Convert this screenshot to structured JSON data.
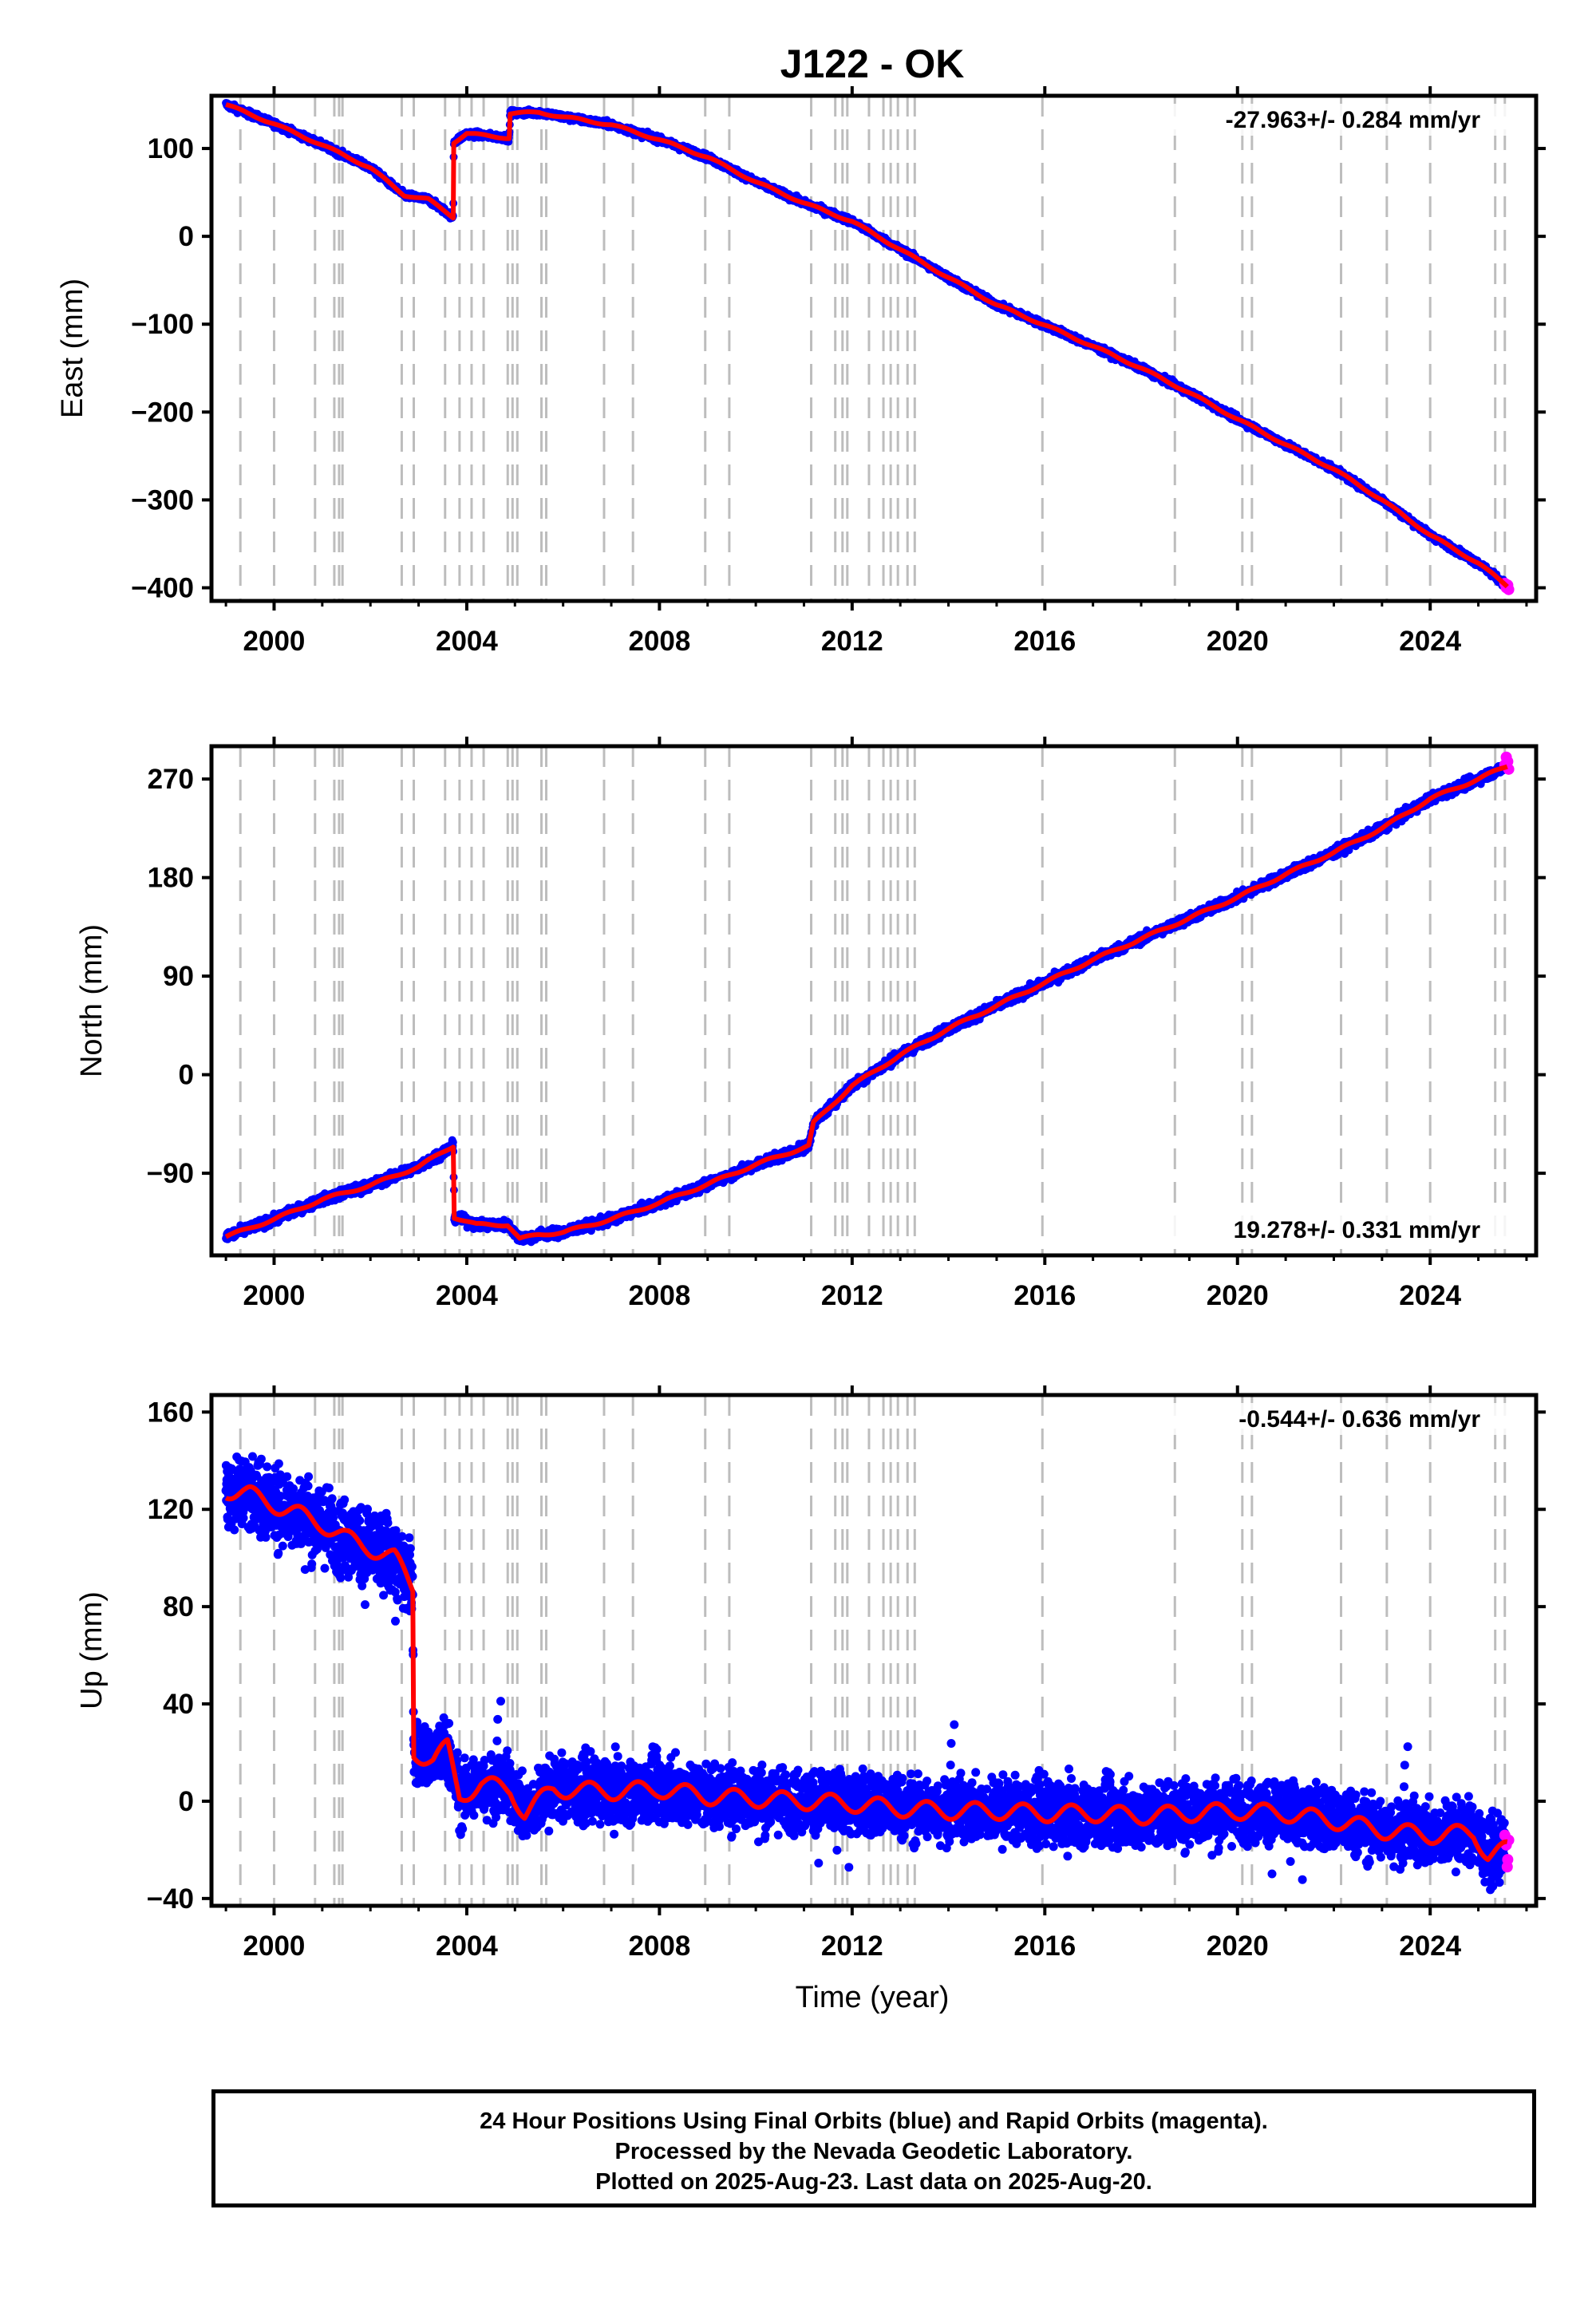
{
  "title": "J122 - OK",
  "colors": {
    "final_points": "#0000ff",
    "rapid_points": "#ff00ff",
    "model": "#ff0000",
    "event_lines": "#bdbdbd"
  },
  "footer": {
    "line1": "24 Hour Positions Using Final Orbits (blue) and Rapid Orbits (magenta).",
    "line2": "Processed by the Nevada Geodetic Laboratory.",
    "line3": "Plotted on 2025-Aug-23. Last data on 2025-Aug-20."
  },
  "chart_data": [
    {
      "type": "scatter",
      "ylabel": "East (mm)",
      "xlabel": "",
      "xlim": [
        1998.7,
        2026.2
      ],
      "ylim": [
        -415,
        160
      ],
      "xticks": [
        "2000",
        "2004",
        "2008",
        "2012",
        "2016",
        "2020",
        "2024"
      ],
      "yticks": [
        "100",
        "0",
        "−100",
        "−200",
        "−300",
        "−400"
      ],
      "rate_label": "-27.963+/- 0.284 mm/yr",
      "rate_position": "top-right",
      "noise_mm": 2.5,
      "model_path": [
        [
          1999.0,
          150
        ],
        [
          2000.0,
          128
        ],
        [
          2001.0,
          104
        ],
        [
          2002.0,
          78
        ],
        [
          2002.7,
          47
        ],
        [
          2003.2,
          42
        ],
        [
          2003.72,
          22
        ],
        [
          2003.73,
          107
        ],
        [
          2004.0,
          117
        ],
        [
          2004.5,
          114
        ],
        [
          2004.88,
          112
        ],
        [
          2004.9,
          140
        ],
        [
          2005.5,
          141
        ],
        [
          2006.0,
          136
        ],
        [
          2007.0,
          127
        ],
        [
          2008.0,
          110
        ],
        [
          2009.0,
          90
        ],
        [
          2010.0,
          62
        ],
        [
          2011.0,
          38
        ],
        [
          2012.0,
          17
        ],
        [
          2013.0,
          -15
        ],
        [
          2014.0,
          -47
        ],
        [
          2015.0,
          -78
        ],
        [
          2016.0,
          -101
        ],
        [
          2017.0,
          -125
        ],
        [
          2018.0,
          -150
        ],
        [
          2019.0,
          -178
        ],
        [
          2020.0,
          -208
        ],
        [
          2021.0,
          -237
        ],
        [
          2022.0,
          -265
        ],
        [
          2023.0,
          -300
        ],
        [
          2024.0,
          -340
        ],
        [
          2025.0,
          -372
        ],
        [
          2025.6,
          -398
        ]
      ],
      "rapid_points": [
        [
          2025.55,
          -395
        ],
        [
          2025.58,
          -400
        ],
        [
          2025.61,
          -397
        ],
        [
          2025.63,
          -402
        ]
      ]
    },
    {
      "type": "scatter",
      "ylabel": "North (mm)",
      "xlabel": "",
      "xlim": [
        1998.7,
        2026.2
      ],
      "ylim": [
        -165,
        300
      ],
      "xticks": [
        "2000",
        "2004",
        "2008",
        "2012",
        "2016",
        "2020",
        "2024"
      ],
      "yticks": [
        "270",
        "180",
        "90",
        "0",
        "−90"
      ],
      "rate_label": "19.278+/- 0.331 mm/yr",
      "rate_position": "bottom-right",
      "noise_mm": 3.0,
      "model_path": [
        [
          1999.0,
          -148
        ],
        [
          2000.0,
          -132
        ],
        [
          2001.0,
          -114
        ],
        [
          2002.0,
          -101
        ],
        [
          2003.0,
          -84
        ],
        [
          2003.72,
          -65
        ],
        [
          2003.74,
          -130
        ],
        [
          2004.2,
          -137
        ],
        [
          2004.85,
          -137
        ],
        [
          2005.1,
          -150
        ],
        [
          2005.5,
          -146
        ],
        [
          2006.0,
          -144
        ],
        [
          2007.0,
          -132
        ],
        [
          2008.0,
          -117
        ],
        [
          2009.0,
          -100
        ],
        [
          2010.0,
          -82
        ],
        [
          2011.1,
          -65
        ],
        [
          2011.2,
          -44
        ],
        [
          2012.0,
          -10
        ],
        [
          2013.0,
          18
        ],
        [
          2014.0,
          42
        ],
        [
          2015.0,
          63
        ],
        [
          2016.0,
          84
        ],
        [
          2017.0,
          105
        ],
        [
          2018.0,
          124
        ],
        [
          2019.0,
          143
        ],
        [
          2020.0,
          162
        ],
        [
          2021.0,
          183
        ],
        [
          2022.0,
          203
        ],
        [
          2023.0,
          225
        ],
        [
          2024.0,
          252
        ],
        [
          2025.0,
          270
        ],
        [
          2025.6,
          282
        ]
      ],
      "rapid_points": [
        [
          2025.55,
          283
        ],
        [
          2025.58,
          290
        ],
        [
          2025.61,
          286
        ],
        [
          2025.63,
          279
        ]
      ]
    },
    {
      "type": "scatter",
      "ylabel": "Up (mm)",
      "xlabel": "Time (year)",
      "xlim": [
        1998.7,
        2026.2
      ],
      "ylim": [
        -43,
        167
      ],
      "xticks": [
        "2000",
        "2004",
        "2008",
        "2012",
        "2016",
        "2020",
        "2024"
      ],
      "yticks": [
        "160",
        "120",
        "80",
        "40",
        "0",
        "−40"
      ],
      "rate_label": "-0.544+/- 0.636 mm/yr",
      "rate_position": "top-right",
      "noise_mm": 9,
      "model_path": [
        [
          1999.0,
          128
        ],
        [
          1999.5,
          126
        ],
        [
          2000.0,
          122
        ],
        [
          2000.5,
          118
        ],
        [
          2001.0,
          114
        ],
        [
          2001.5,
          108
        ],
        [
          2002.0,
          104
        ],
        [
          2002.5,
          100
        ],
        [
          2002.88,
          88
        ],
        [
          2002.9,
          20
        ],
        [
          2003.3,
          17
        ],
        [
          2003.6,
          22
        ],
        [
          2003.85,
          2
        ],
        [
          2004.3,
          7
        ],
        [
          2004.9,
          5
        ],
        [
          2005.2,
          -5
        ],
        [
          2005.8,
          5
        ],
        [
          2007.0,
          4
        ],
        [
          2008.0,
          5
        ],
        [
          2009.0,
          2
        ],
        [
          2010.0,
          1
        ],
        [
          2011.0,
          0
        ],
        [
          2012.0,
          -1
        ],
        [
          2013.0,
          -3
        ],
        [
          2014.0,
          -4
        ],
        [
          2015.0,
          -4
        ],
        [
          2016.0,
          -5
        ],
        [
          2017.0,
          -5
        ],
        [
          2018.0,
          -6
        ],
        [
          2019.0,
          -5
        ],
        [
          2020.0,
          -4
        ],
        [
          2021.0,
          -5
        ],
        [
          2022.0,
          -8
        ],
        [
          2023.0,
          -12
        ],
        [
          2024.0,
          -14
        ],
        [
          2024.9,
          -13
        ],
        [
          2025.2,
          -22
        ],
        [
          2025.6,
          -20
        ]
      ],
      "rapid_points": [
        [
          2025.55,
          -14
        ],
        [
          2025.58,
          -18
        ],
        [
          2025.61,
          -24
        ],
        [
          2025.63,
          -16
        ],
        [
          2025.6,
          -27
        ]
      ]
    }
  ],
  "event_lines": [
    1999.3,
    2000.0,
    2000.85,
    2001.25,
    2001.35,
    2001.42,
    2002.65,
    2002.9,
    2003.55,
    2003.85,
    2004.1,
    2004.35,
    2004.85,
    2004.95,
    2005.05,
    2005.55,
    2005.65,
    2006.85,
    2007.45,
    2008.95,
    2009.45,
    2011.15,
    2011.65,
    2011.8,
    2011.9,
    2012.35,
    2012.65,
    2012.8,
    2012.95,
    2013.15,
    2013.3,
    2015.95,
    2018.7,
    2020.1,
    2020.3,
    2022.15,
    2023.1,
    2024.0,
    2025.35,
    2025.55
  ]
}
